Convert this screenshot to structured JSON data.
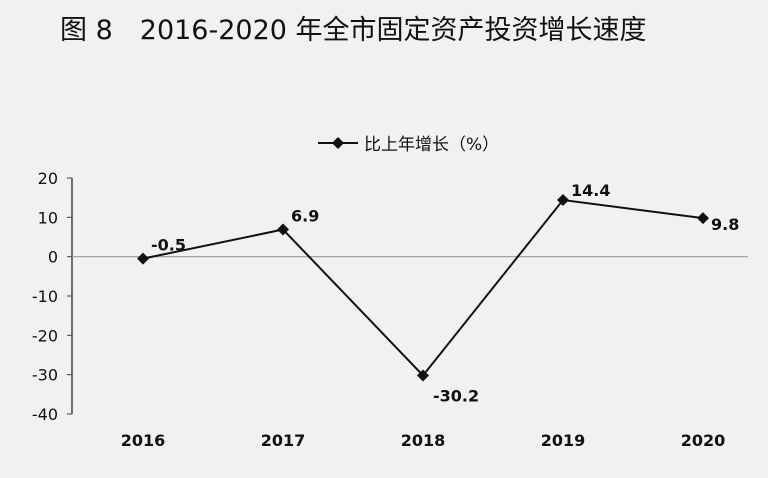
{
  "chart_data": {
    "type": "line",
    "title": "图 8　2016-2020 年全市固定资产投资增长速度",
    "categories": [
      "2016",
      "2017",
      "2018",
      "2019",
      "2020"
    ],
    "series": [
      {
        "name": "比上年增长（%）",
        "values": [
          -0.5,
          6.9,
          -30.2,
          14.4,
          9.8
        ],
        "color": "#111111"
      }
    ],
    "data_labels": [
      "-0.5",
      "6.9",
      "-30.2",
      "14.4",
      "9.8"
    ],
    "yticks": [
      20,
      10,
      0,
      -10,
      -20,
      -30,
      -40
    ],
    "ylim": [
      -40,
      20
    ],
    "grid": false,
    "legend": "top-center",
    "marker": "diamond"
  }
}
